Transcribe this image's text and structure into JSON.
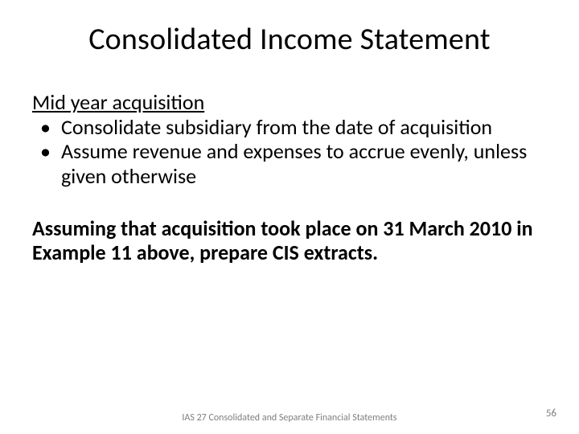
{
  "slide": {
    "title": "Consolidated Income Statement",
    "sub_heading": "Mid year acquisition",
    "bullets": [
      "Consolidate subsidiary from the date of acquisition",
      "Assume revenue and expenses to accrue evenly, unless given otherwise"
    ],
    "bold_paragraph": "Assuming that acquisition took place on 31 March 2010 in Example 11 above, prepare CIS extracts.",
    "footer": "IAS 27 Consolidated and Separate Financial Statements",
    "page_number": "56"
  },
  "style": {
    "background_color": "#ffffff",
    "text_color": "#000000",
    "footer_color": "#7f7f7f",
    "title_fontsize": 38,
    "body_fontsize": 26,
    "footer_fontsize": 12,
    "font_family": "Calibri"
  }
}
